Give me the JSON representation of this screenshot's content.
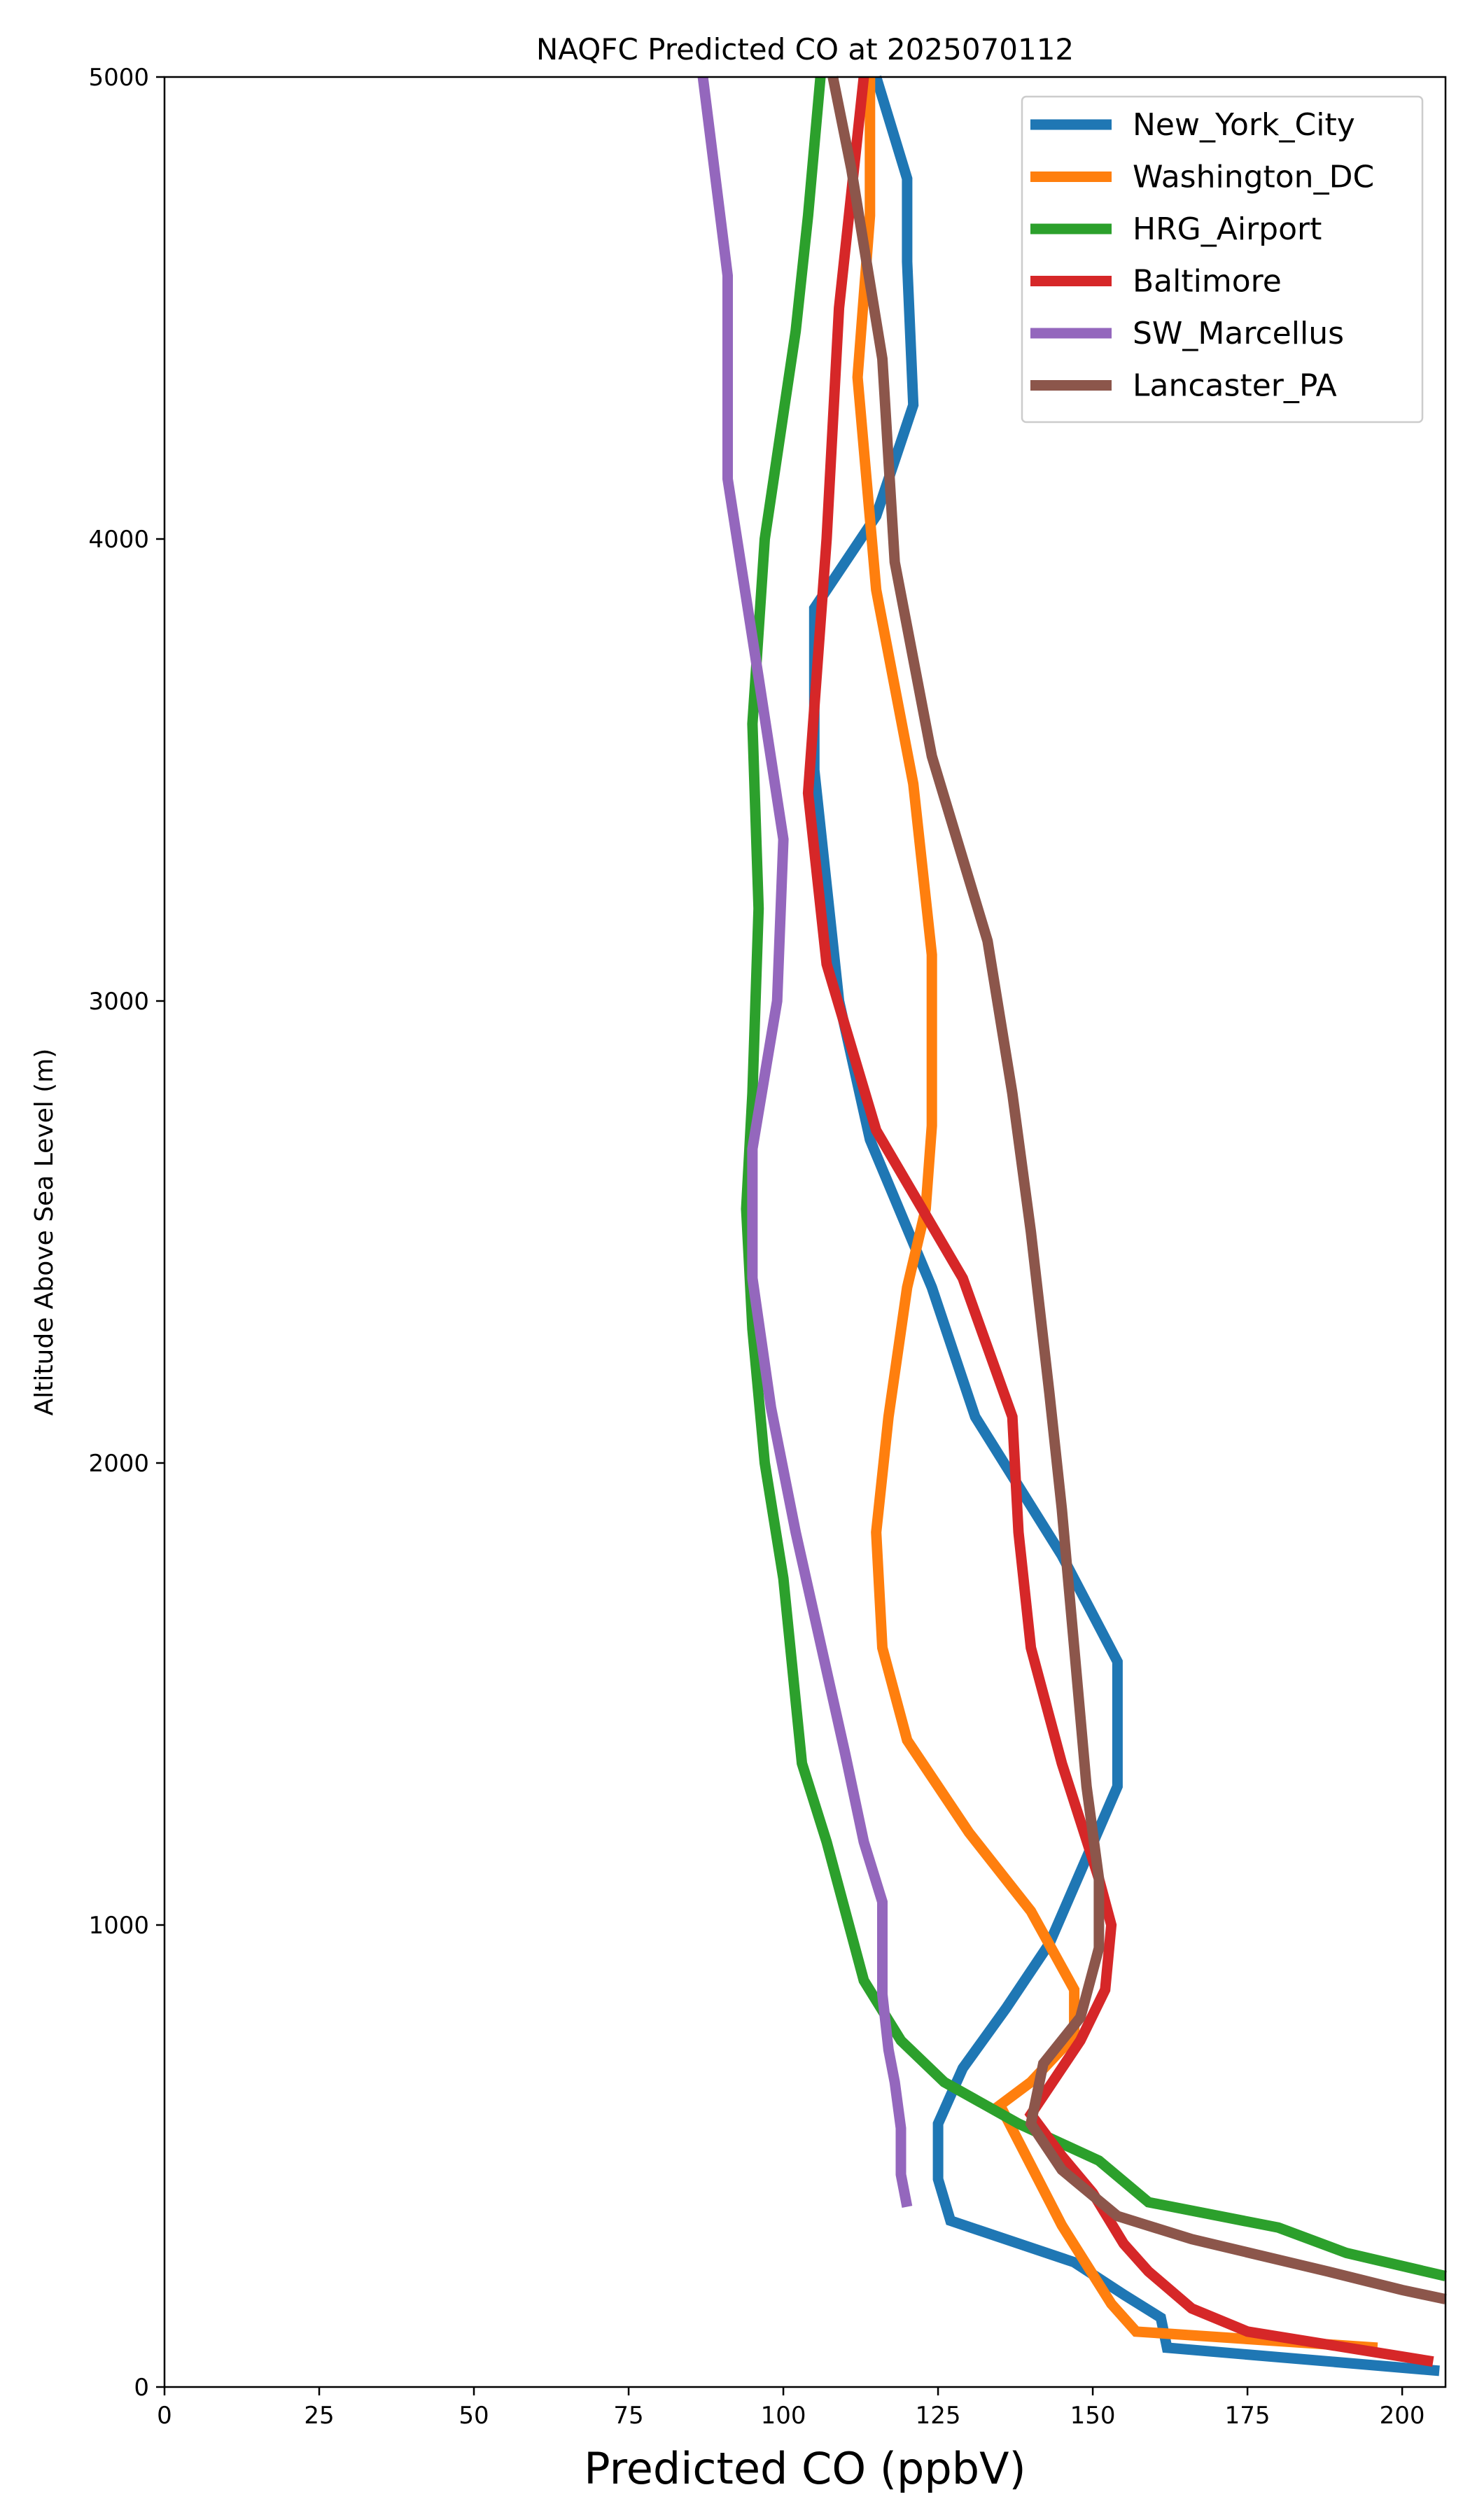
{
  "chart_data": {
    "type": "line",
    "title": "NAQFC Predicted CO at 2025070112",
    "xlabel": "Predicted CO (ppbV)",
    "ylabel": "Altitude Above Sea Level (m)",
    "xlim": [
      0,
      207
    ],
    "ylim": [
      0,
      5000
    ],
    "x_ticks": [
      "0",
      "25",
      "50",
      "75",
      "100",
      "125",
      "150",
      "175",
      "200"
    ],
    "y_ticks": [
      "0",
      "1000",
      "2000",
      "3000",
      "4000",
      "5000"
    ],
    "grid": false,
    "legend_position": "top-right",
    "series": [
      {
        "name": "New_York_City",
        "color": "#1f77b4",
        "points": [
          [
            206,
            35
          ],
          [
            162,
            85
          ],
          [
            161,
            150
          ],
          [
            155,
            200
          ],
          [
            147,
            270
          ],
          [
            127,
            360
          ],
          [
            125,
            450
          ],
          [
            125,
            570
          ],
          [
            129,
            690
          ],
          [
            136,
            820
          ],
          [
            143,
            960
          ],
          [
            154,
            1300
          ],
          [
            154,
            1570
          ],
          [
            145,
            1800
          ],
          [
            131,
            2100
          ],
          [
            124,
            2380
          ],
          [
            114,
            2700
          ],
          [
            109,
            3000
          ],
          [
            105,
            3500
          ],
          [
            105,
            3850
          ],
          [
            115,
            4050
          ],
          [
            121,
            4290
          ],
          [
            120,
            4600
          ],
          [
            120,
            4780
          ],
          [
            115,
            5000
          ]
        ]
      },
      {
        "name": "Washington_DC",
        "color": "#ff7f0e",
        "points": [
          [
            196,
            85
          ],
          [
            157,
            120
          ],
          [
            153,
            180
          ],
          [
            145,
            350
          ],
          [
            140,
            480
          ],
          [
            135,
            610
          ],
          [
            140,
            660
          ],
          [
            147,
            760
          ],
          [
            147,
            860
          ],
          [
            140,
            1030
          ],
          [
            130,
            1200
          ],
          [
            120,
            1400
          ],
          [
            116,
            1600
          ],
          [
            115,
            1850
          ],
          [
            117,
            2100
          ],
          [
            120,
            2380
          ],
          [
            123,
            2550
          ],
          [
            124,
            2730
          ],
          [
            124,
            3100
          ],
          [
            121,
            3470
          ],
          [
            115,
            3890
          ],
          [
            112,
            4350
          ],
          [
            114,
            4700
          ],
          [
            114,
            5000
          ]
        ]
      },
      {
        "name": "HRG_Airport",
        "color": "#2ca02c",
        "points": [
          [
            207,
            240
          ],
          [
            191,
            290
          ],
          [
            180,
            345
          ],
          [
            159,
            400
          ],
          [
            151,
            490
          ],
          [
            138,
            570
          ],
          [
            126,
            660
          ],
          [
            119,
            750
          ],
          [
            113,
            880
          ],
          [
            107,
            1180
          ],
          [
            103,
            1350
          ],
          [
            100,
            1750
          ],
          [
            97,
            2000
          ],
          [
            95,
            2290
          ],
          [
            94,
            2550
          ],
          [
            95,
            2800
          ],
          [
            96,
            3200
          ],
          [
            95,
            3600
          ],
          [
            97,
            4000
          ],
          [
            102,
            4450
          ],
          [
            104,
            4700
          ],
          [
            106,
            5000
          ]
        ]
      },
      {
        "name": "Baltimore",
        "color": "#d62728",
        "points": [
          [
            205,
            55
          ],
          [
            175,
            120
          ],
          [
            166,
            170
          ],
          [
            159,
            250
          ],
          [
            155,
            310
          ],
          [
            150,
            420
          ],
          [
            145,
            500
          ],
          [
            140,
            590
          ],
          [
            145,
            690
          ],
          [
            148,
            750
          ],
          [
            152,
            860
          ],
          [
            153,
            1000
          ],
          [
            151,
            1100
          ],
          [
            145,
            1350
          ],
          [
            140,
            1600
          ],
          [
            138,
            1850
          ],
          [
            137,
            2100
          ],
          [
            129,
            2400
          ],
          [
            115,
            2720
          ],
          [
            107,
            3080
          ],
          [
            104,
            3450
          ],
          [
            107,
            4000
          ],
          [
            109,
            4500
          ],
          [
            113,
            5000
          ]
        ]
      },
      {
        "name": "SW_Marcellus",
        "color": "#9467bd",
        "points": [
          [
            120,
            390
          ],
          [
            119,
            460
          ],
          [
            119,
            560
          ],
          [
            118,
            660
          ],
          [
            117,
            730
          ],
          [
            116,
            850
          ],
          [
            116,
            1050
          ],
          [
            113,
            1180
          ],
          [
            110,
            1370
          ],
          [
            102,
            1850
          ],
          [
            98,
            2120
          ],
          [
            95,
            2400
          ],
          [
            95,
            2680
          ],
          [
            99,
            3000
          ],
          [
            100,
            3350
          ],
          [
            96,
            3700
          ],
          [
            91,
            4130
          ],
          [
            91,
            4570
          ],
          [
            87,
            5000
          ]
        ]
      },
      {
        "name": "Lancaster_PA",
        "color": "#8c564b",
        "points": [
          [
            207,
            190
          ],
          [
            200,
            210
          ],
          [
            188,
            250
          ],
          [
            166,
            320
          ],
          [
            154,
            370
          ],
          [
            145,
            470
          ],
          [
            140,
            570
          ],
          [
            142,
            700
          ],
          [
            148,
            800
          ],
          [
            151,
            950
          ],
          [
            151,
            1100
          ],
          [
            149,
            1300
          ],
          [
            147,
            1600
          ],
          [
            145,
            1900
          ],
          [
            143,
            2150
          ],
          [
            140,
            2500
          ],
          [
            137,
            2800
          ],
          [
            133,
            3130
          ],
          [
            124,
            3530
          ],
          [
            118,
            3950
          ],
          [
            116,
            4390
          ],
          [
            111,
            4800
          ],
          [
            108,
            5000
          ]
        ]
      }
    ]
  }
}
